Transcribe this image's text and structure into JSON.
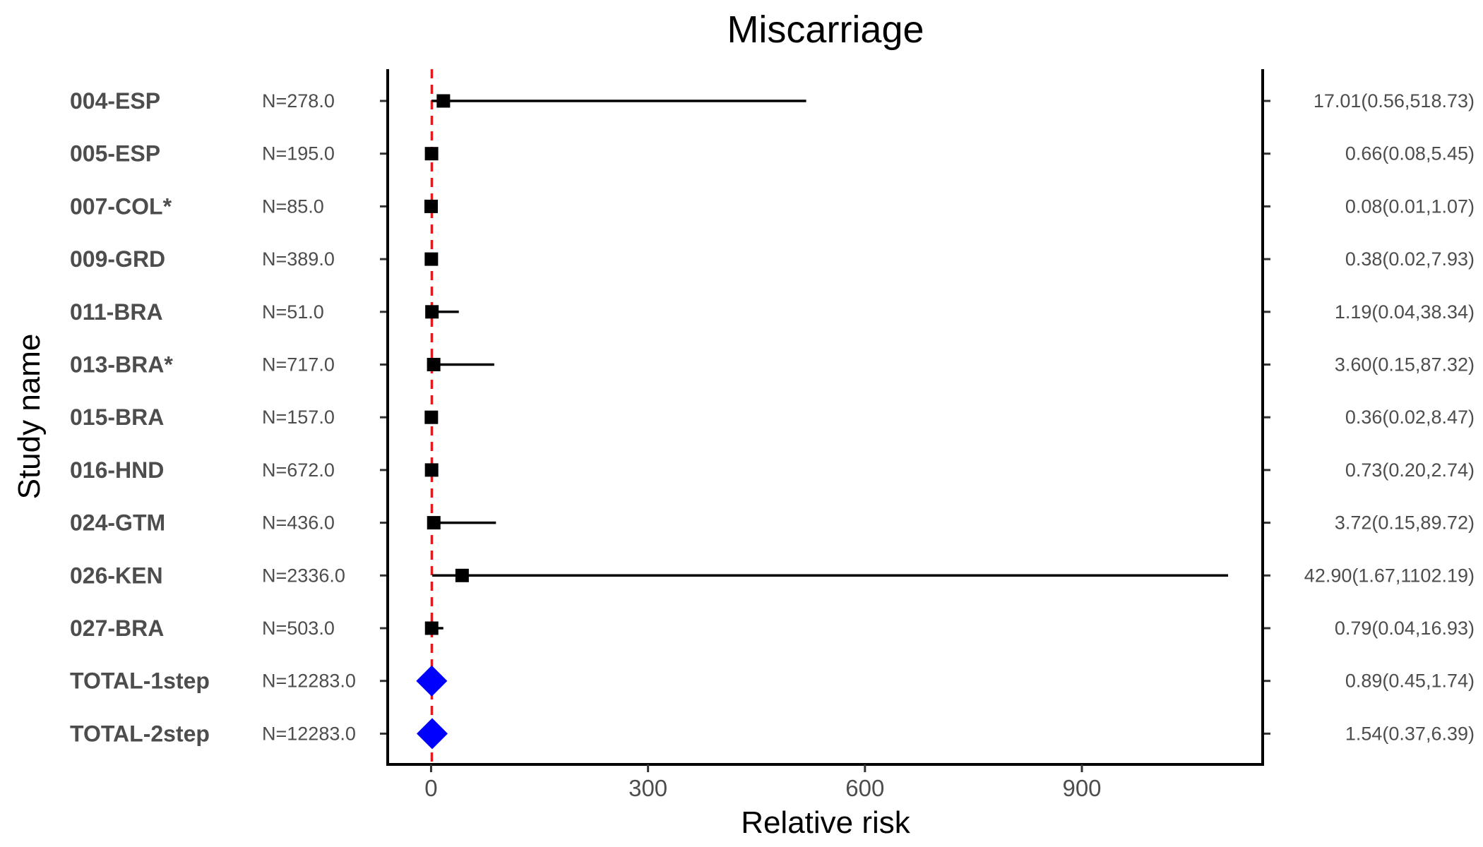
{
  "chart_data": {
    "type": "forest",
    "title": "Miscarriage",
    "xlabel": "Relative risk",
    "ylabel": "Study name",
    "xlim": [
      -60,
      1150
    ],
    "xticks": [
      0,
      300,
      600,
      900
    ],
    "reference_line": 1,
    "colors": {
      "reference": "#e41a1c",
      "pooled": "#0000ff",
      "study": "#000000"
    },
    "rows": [
      {
        "study": "004-ESP",
        "n": "N=278.0",
        "rr": 17.01,
        "lo": 0.56,
        "hi": 518.73,
        "ci_label": "17.01(0.56,518.73)",
        "pooled": false
      },
      {
        "study": "005-ESP",
        "n": "N=195.0",
        "rr": 0.66,
        "lo": 0.08,
        "hi": 5.45,
        "ci_label": "0.66(0.08,5.45)",
        "pooled": false
      },
      {
        "study": "007-COL*",
        "n": "N=85.0",
        "rr": 0.08,
        "lo": 0.01,
        "hi": 1.07,
        "ci_label": "0.08(0.01,1.07)",
        "pooled": false
      },
      {
        "study": "009-GRD",
        "n": "N=389.0",
        "rr": 0.38,
        "lo": 0.02,
        "hi": 7.93,
        "ci_label": "0.38(0.02,7.93)",
        "pooled": false
      },
      {
        "study": "011-BRA",
        "n": "N=51.0",
        "rr": 1.19,
        "lo": 0.04,
        "hi": 38.34,
        "ci_label": "1.19(0.04,38.34)",
        "pooled": false
      },
      {
        "study": "013-BRA*",
        "n": "N=717.0",
        "rr": 3.6,
        "lo": 0.15,
        "hi": 87.32,
        "ci_label": "3.60(0.15,87.32)",
        "pooled": false
      },
      {
        "study": "015-BRA",
        "n": "N=157.0",
        "rr": 0.36,
        "lo": 0.02,
        "hi": 8.47,
        "ci_label": "0.36(0.02,8.47)",
        "pooled": false
      },
      {
        "study": "016-HND",
        "n": "N=672.0",
        "rr": 0.73,
        "lo": 0.2,
        "hi": 2.74,
        "ci_label": "0.73(0.20,2.74)",
        "pooled": false
      },
      {
        "study": "024-GTM",
        "n": "N=436.0",
        "rr": 3.72,
        "lo": 0.15,
        "hi": 89.72,
        "ci_label": "3.72(0.15,89.72)",
        "pooled": false
      },
      {
        "study": "026-KEN",
        "n": "N=2336.0",
        "rr": 42.9,
        "lo": 1.67,
        "hi": 1102.19,
        "ci_label": "42.90(1.67,1102.19)",
        "pooled": false
      },
      {
        "study": "027-BRA",
        "n": "N=503.0",
        "rr": 0.79,
        "lo": 0.04,
        "hi": 16.93,
        "ci_label": "0.79(0.04,16.93)",
        "pooled": false
      },
      {
        "study": "TOTAL-1step",
        "n": "N=12283.0",
        "rr": 0.89,
        "lo": 0.45,
        "hi": 1.74,
        "ci_label": "0.89(0.45,1.74)",
        "pooled": true
      },
      {
        "study": "TOTAL-2step",
        "n": "N=12283.0",
        "rr": 1.54,
        "lo": 0.37,
        "hi": 6.39,
        "ci_label": "1.54(0.37,6.39)",
        "pooled": true
      }
    ]
  }
}
